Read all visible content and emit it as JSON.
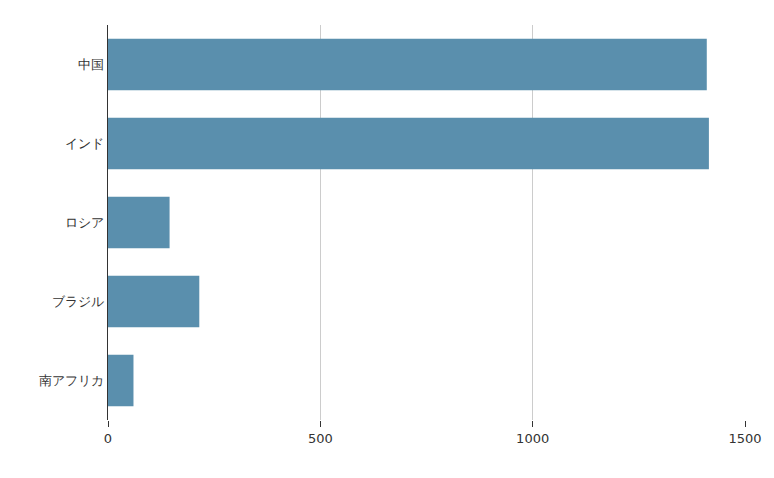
{
  "chart_data": {
    "type": "bar",
    "orientation": "horizontal",
    "categories": [
      "中国",
      "インド",
      "ロシア",
      "ブラジル",
      "南アフリカ"
    ],
    "values": [
      1410,
      1415,
      145,
      215,
      60
    ],
    "color": "#5a8fad",
    "xlim": [
      0,
      1500
    ],
    "xticks": [
      0,
      500,
      1000,
      1500
    ],
    "grid": true
  }
}
